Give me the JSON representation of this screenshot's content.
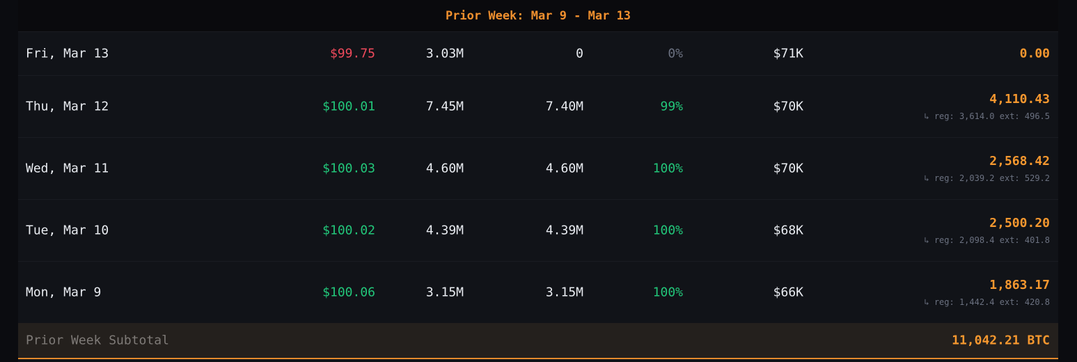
{
  "week": {
    "header": "Prior Week: Mar 9 - Mar 13"
  },
  "rows": [
    {
      "date": "Fri, Mar 13",
      "price": "$99.75",
      "price_status": "down",
      "volume": "3.03M",
      "volume2": "0",
      "pct": "0%",
      "cap": "$71K",
      "btc": "0.00",
      "btc_detail": ""
    },
    {
      "date": "Thu, Mar 12",
      "price": "$100.01",
      "price_status": "up",
      "volume": "7.45M",
      "volume2": "7.40M",
      "pct": "99%",
      "cap": "$70K",
      "btc": "4,110.43",
      "btc_detail": "↳ reg: 3,614.0 ext: 496.5"
    },
    {
      "date": "Wed, Mar 11",
      "price": "$100.03",
      "price_status": "up",
      "volume": "4.60M",
      "volume2": "4.60M",
      "pct": "100%",
      "cap": "$70K",
      "btc": "2,568.42",
      "btc_detail": "↳ reg: 2,039.2 ext: 529.2"
    },
    {
      "date": "Tue, Mar 10",
      "price": "$100.02",
      "price_status": "up",
      "volume": "4.39M",
      "volume2": "4.39M",
      "pct": "100%",
      "cap": "$68K",
      "btc": "2,500.20",
      "btc_detail": "↳ reg: 2,098.4 ext: 401.8"
    },
    {
      "date": "Mon, Mar 9",
      "price": "$100.06",
      "price_status": "up",
      "volume": "3.15M",
      "volume2": "3.15M",
      "pct": "100%",
      "cap": "$66K",
      "btc": "1,863.17",
      "btc_detail": "↳ reg: 1,442.4 ext: 420.8"
    }
  ],
  "subtotal": {
    "label": "Prior Week Subtotal",
    "value": "11,042.21 BTC"
  },
  "colors": {
    "accent": "#f6982f",
    "up": "#22c77a",
    "down": "#f04a5c",
    "muted": "#6b7180"
  }
}
